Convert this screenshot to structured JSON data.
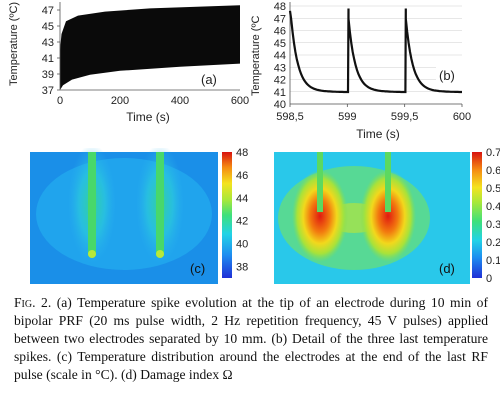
{
  "figure": {
    "caption_label": "Fig. 2.",
    "caption_text": "(a) Temperature spike evolution at the tip of an electrode during 10 min of bipolar PRF (20 ms pulse width, 2 Hz repetition frequency, 45 V pulses) applied between two electrodes separated by 10 mm. (b) Detail of the three last temperature spikes. (c) Temperature distribution around the electrodes at the end of the last RF pulse (scale in °C). (d) Damage index Ω"
  },
  "chart_data": [
    {
      "panel": "(a)",
      "type": "area",
      "xlabel": "Time (s)",
      "ylabel": "Temperature (ºC)",
      "xlim": [
        0,
        600
      ],
      "ylim": [
        37,
        48
      ],
      "xticks": [
        "0",
        "200",
        "400",
        "600"
      ],
      "yticks": [
        "37",
        "39",
        "41",
        "43",
        "45",
        "47"
      ],
      "series": [
        {
          "values_upper": [
            [
              0,
              42
            ],
            [
              5,
              44
            ],
            [
              20,
              45.6
            ],
            [
              60,
              46.3
            ],
            [
              150,
              46.8
            ],
            [
              300,
              47.2
            ],
            [
              600,
              47.6
            ]
          ]
        },
        {
          "values_lower": [
            [
              0,
              37
            ],
            [
              10,
              37.6
            ],
            [
              40,
              38.3
            ],
            [
              100,
              38.9
            ],
            [
              200,
              39.4
            ],
            [
              400,
              39.9
            ],
            [
              600,
              40.3
            ]
          ]
        }
      ],
      "label": "(a)"
    },
    {
      "panel": "(b)",
      "type": "line",
      "xlabel": "Time (s)",
      "ylabel": "Temperature (ºC",
      "xlim": [
        598.5,
        600
      ],
      "ylim": [
        40,
        48
      ],
      "xticks": [
        "598,5",
        "599",
        "599,5",
        "600"
      ],
      "yticks": [
        "40",
        "41",
        "42",
        "43",
        "44",
        "45",
        "46",
        "47",
        "48"
      ],
      "spikes_at": [
        598.51,
        599.01,
        599.51
      ],
      "peak": 47.8,
      "baseline": 40.9,
      "label": "(b)"
    },
    {
      "panel": "(c)",
      "type": "heatmap",
      "colorbar_ticks": [
        "48",
        "46",
        "44",
        "42",
        "40",
        "38"
      ],
      "colorbar_range": [
        37,
        48
      ],
      "label": "(c)"
    },
    {
      "panel": "(d)",
      "type": "heatmap",
      "colorbar_ticks": [
        "0.7",
        "0.6",
        "0.5",
        "0.4",
        "0.3",
        "0.2",
        "0.1",
        "0"
      ],
      "colorbar_range": [
        0,
        0.7
      ],
      "label": "(d)"
    }
  ]
}
